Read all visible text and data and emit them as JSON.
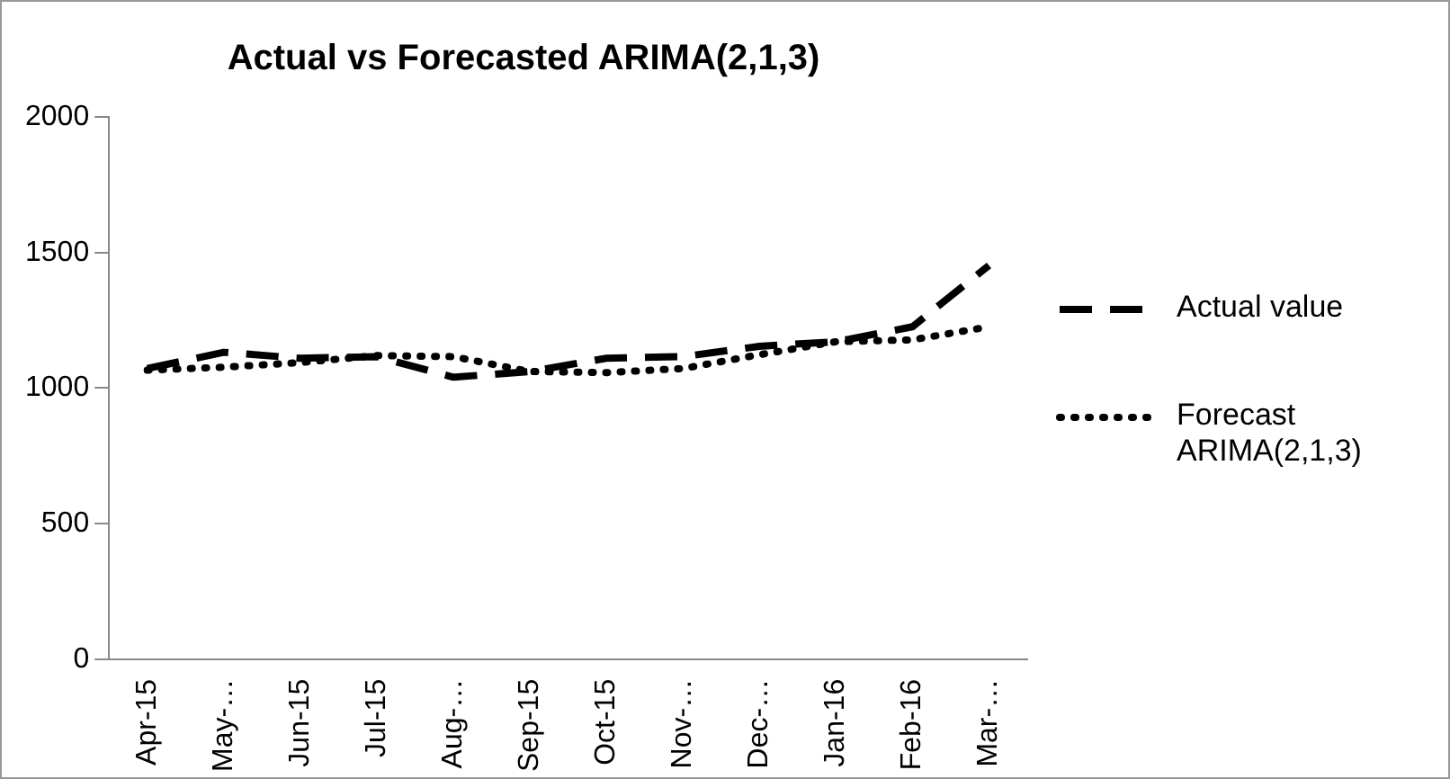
{
  "chart_data": {
    "type": "line",
    "title": "Actual vs Forecasted ARIMA(2,1,3)",
    "categories": [
      "Apr-15",
      "May-…",
      "Jun-15",
      "Jul-15",
      "Aug-…",
      "Sep-15",
      "Oct-15",
      "Nov-…",
      "Dec-…",
      "Jan-16",
      "Feb-16",
      "Mar-…"
    ],
    "series": [
      {
        "name": "Actual value",
        "color": "#000000",
        "line_style": "dashed",
        "values": [
          1072,
          1132,
          1110,
          1116,
          1040,
          1061,
          1110,
          1116,
          1154,
          1171,
          1226,
          1452
        ]
      },
      {
        "name": "Forecast ARIMA(2,1,3)",
        "color": "#000000",
        "line_style": "dotted",
        "values": [
          1066,
          1077,
          1094,
          1120,
          1116,
          1061,
          1057,
          1072,
          1123,
          1171,
          1178,
          1226
        ]
      }
    ],
    "ylim": [
      0,
      2000
    ],
    "yticks": [
      0,
      500,
      1000,
      1500,
      2000
    ],
    "grid": false,
    "legend": "right",
    "marker": "none"
  }
}
